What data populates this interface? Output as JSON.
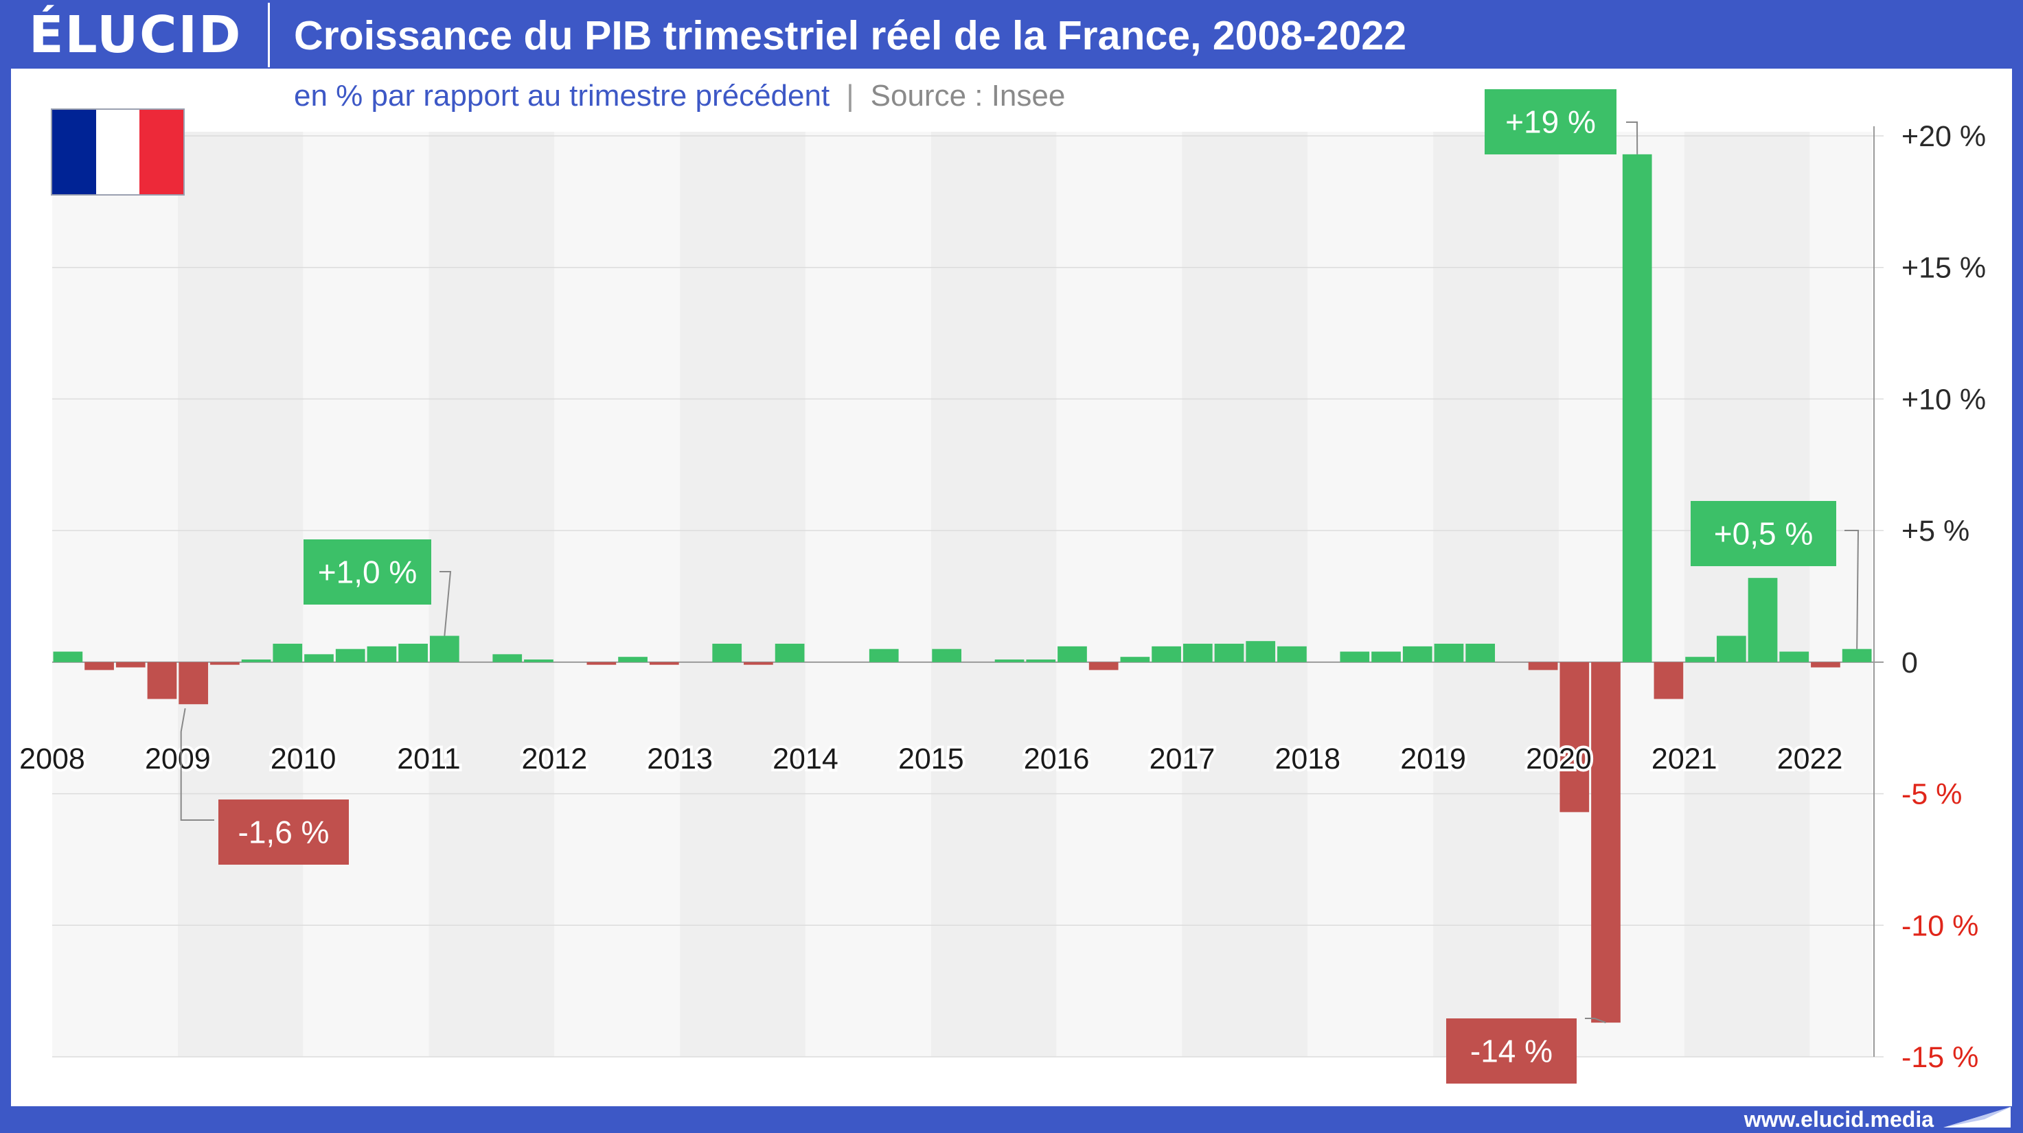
{
  "header": {
    "logo": "ÉLUCID",
    "title": "Croissance du PIB trimestriel réel de la France, 2008-2022",
    "subtitle": "en % par rapport au trimestre précédent",
    "separator": "|",
    "source": "Source : Insee"
  },
  "footer": {
    "url": "www.elucid.media"
  },
  "flag": {
    "colors": [
      "#002395",
      "#ffffff",
      "#ED2939"
    ]
  },
  "colors": {
    "positive": "#3CC068",
    "negative": "#C0504D",
    "brand": "#3D58C6"
  },
  "chart_data": {
    "type": "bar",
    "title": "Croissance du PIB trimestriel réel de la France, 2008-2022",
    "subtitle": "en % par rapport au trimestre précédent",
    "xlabel": "",
    "ylabel": "",
    "ylim": [
      -15,
      20
    ],
    "y_ticks": [
      {
        "value": 20,
        "label": "+20 %"
      },
      {
        "value": 15,
        "label": "+15 %"
      },
      {
        "value": 10,
        "label": "+10 %"
      },
      {
        "value": 5,
        "label": "+5 %"
      },
      {
        "value": 0,
        "label": "0"
      },
      {
        "value": -5,
        "label": "-5 %"
      },
      {
        "value": -10,
        "label": "-10 %"
      },
      {
        "value": -15,
        "label": "-15 %"
      }
    ],
    "year_labels": [
      "2008",
      "2009",
      "2010",
      "2011",
      "2012",
      "2013",
      "2014",
      "2015",
      "2016",
      "2017",
      "2018",
      "2019",
      "2020",
      "2021",
      "2022"
    ],
    "quarters_per_year": 4,
    "values": [
      0.4,
      -0.3,
      -0.2,
      -1.4,
      -1.6,
      -0.1,
      0.1,
      0.7,
      0.3,
      0.5,
      0.6,
      0.7,
      1.0,
      0.0,
      0.3,
      0.1,
      0.0,
      -0.1,
      0.2,
      -0.1,
      0.0,
      0.7,
      -0.1,
      0.7,
      0.0,
      0.0,
      0.5,
      0.0,
      0.5,
      0.0,
      0.1,
      0.1,
      0.6,
      -0.3,
      0.2,
      0.6,
      0.7,
      0.7,
      0.8,
      0.6,
      0.0,
      0.4,
      0.4,
      0.6,
      0.7,
      0.7,
      0.0,
      -0.3,
      -5.7,
      -13.7,
      19.3,
      -1.4,
      0.2,
      1.0,
      3.2,
      0.4,
      -0.2,
      0.5
    ],
    "annotations": [
      {
        "index": 4,
        "text": "-1,6 %",
        "sign": "negative"
      },
      {
        "index": 12,
        "text": "+1,0 %",
        "sign": "positive"
      },
      {
        "index": 49,
        "text": "-14 %",
        "sign": "negative"
      },
      {
        "index": 50,
        "text": "+19 %",
        "sign": "positive"
      },
      {
        "index": 57,
        "text": "+0,5 %",
        "sign": "positive"
      }
    ]
  }
}
